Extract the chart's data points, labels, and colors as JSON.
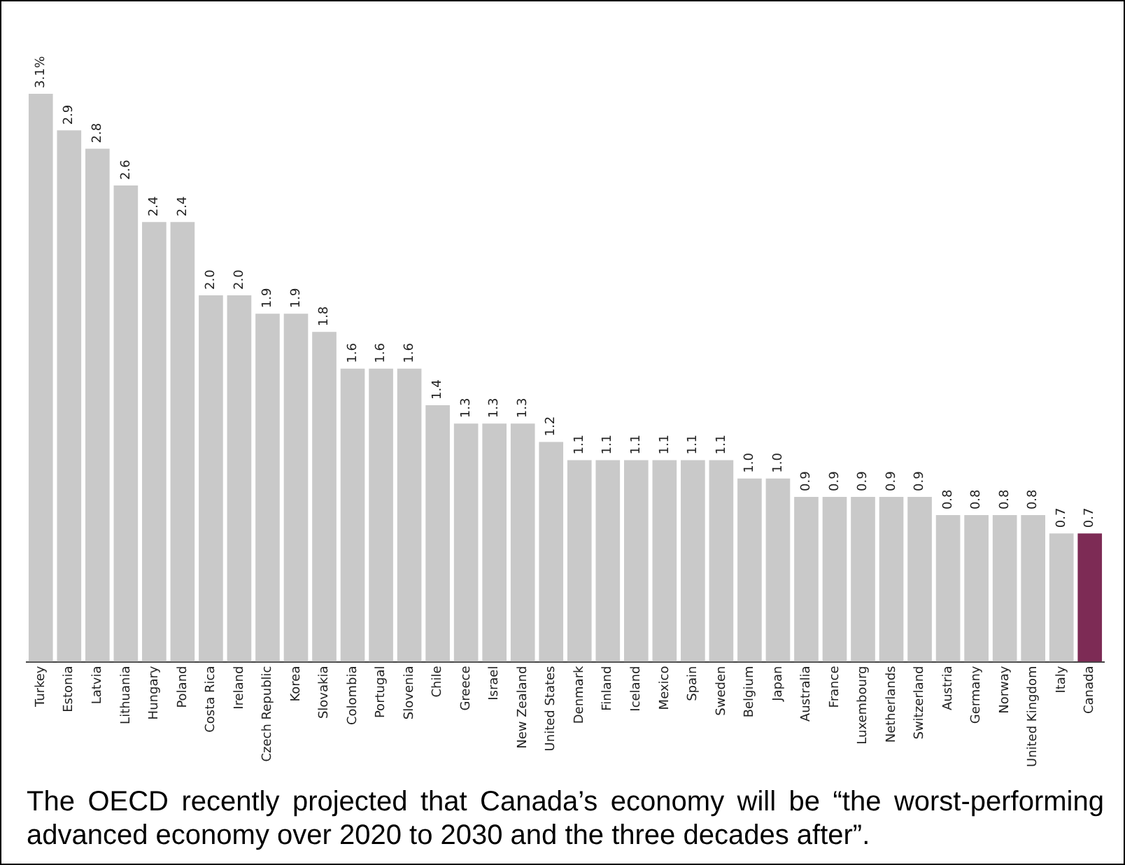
{
  "chart_data": {
    "type": "bar",
    "categories": [
      "Turkey",
      "Estonia",
      "Latvia",
      "Lithuania",
      "Hungary",
      "Poland",
      "Costa Rica",
      "Ireland",
      "Czech Republic",
      "Korea",
      "Slovakia",
      "Colombia",
      "Portugal",
      "Slovenia",
      "Chile",
      "Greece",
      "Israel",
      "New Zealand",
      "United States",
      "Denmark",
      "Finland",
      "Iceland",
      "Mexico",
      "Spain",
      "Sweden",
      "Belgium",
      "Japan",
      "Australia",
      "France",
      "Luxembourg",
      "Netherlands",
      "Switzerland",
      "Austria",
      "Germany",
      "Norway",
      "United Kingdom",
      "Italy",
      "Canada"
    ],
    "values": [
      3.1,
      2.9,
      2.8,
      2.6,
      2.4,
      2.4,
      2.0,
      2.0,
      1.9,
      1.9,
      1.8,
      1.6,
      1.6,
      1.6,
      1.4,
      1.3,
      1.3,
      1.3,
      1.2,
      1.1,
      1.1,
      1.1,
      1.1,
      1.1,
      1.1,
      1.0,
      1.0,
      0.9,
      0.9,
      0.9,
      0.9,
      0.9,
      0.8,
      0.8,
      0.8,
      0.8,
      0.7,
      0.7
    ],
    "value_labels": [
      "3.1%",
      "2.9",
      "2.8",
      "2.6",
      "2.4",
      "2.4",
      "2.0",
      "2.0",
      "1.9",
      "1.9",
      "1.8",
      "1.6",
      "1.6",
      "1.6",
      "1.4",
      "1.3",
      "1.3",
      "1.3",
      "1.2",
      "1.1",
      "1.1",
      "1.1",
      "1.1",
      "1.1",
      "1.1",
      "1.0",
      "1.0",
      "0.9",
      "0.9",
      "0.9",
      "0.9",
      "0.9",
      "0.8",
      "0.8",
      "0.8",
      "0.8",
      "0.7",
      "0.7"
    ],
    "colors": [
      "#c9c9c9",
      "#c9c9c9",
      "#c9c9c9",
      "#c9c9c9",
      "#c9c9c9",
      "#c9c9c9",
      "#c9c9c9",
      "#c9c9c9",
      "#c9c9c9",
      "#c9c9c9",
      "#c9c9c9",
      "#c9c9c9",
      "#c9c9c9",
      "#c9c9c9",
      "#c9c9c9",
      "#c9c9c9",
      "#c9c9c9",
      "#c9c9c9",
      "#c9c9c9",
      "#c9c9c9",
      "#c9c9c9",
      "#c9c9c9",
      "#c9c9c9",
      "#c9c9c9",
      "#c9c9c9",
      "#c9c9c9",
      "#c9c9c9",
      "#c9c9c9",
      "#c9c9c9",
      "#c9c9c9",
      "#c9c9c9",
      "#c9c9c9",
      "#c9c9c9",
      "#c9c9c9",
      "#c9c9c9",
      "#c9c9c9",
      "#c9c9c9",
      "#7d2b55"
    ],
    "grid": false,
    "legend": false,
    "annotations": [
      "The OECD recently projected that Canada’s economy will be “the worst-performing advanced economy over 2020 to 2030 and the three decades after”."
    ]
  }
}
